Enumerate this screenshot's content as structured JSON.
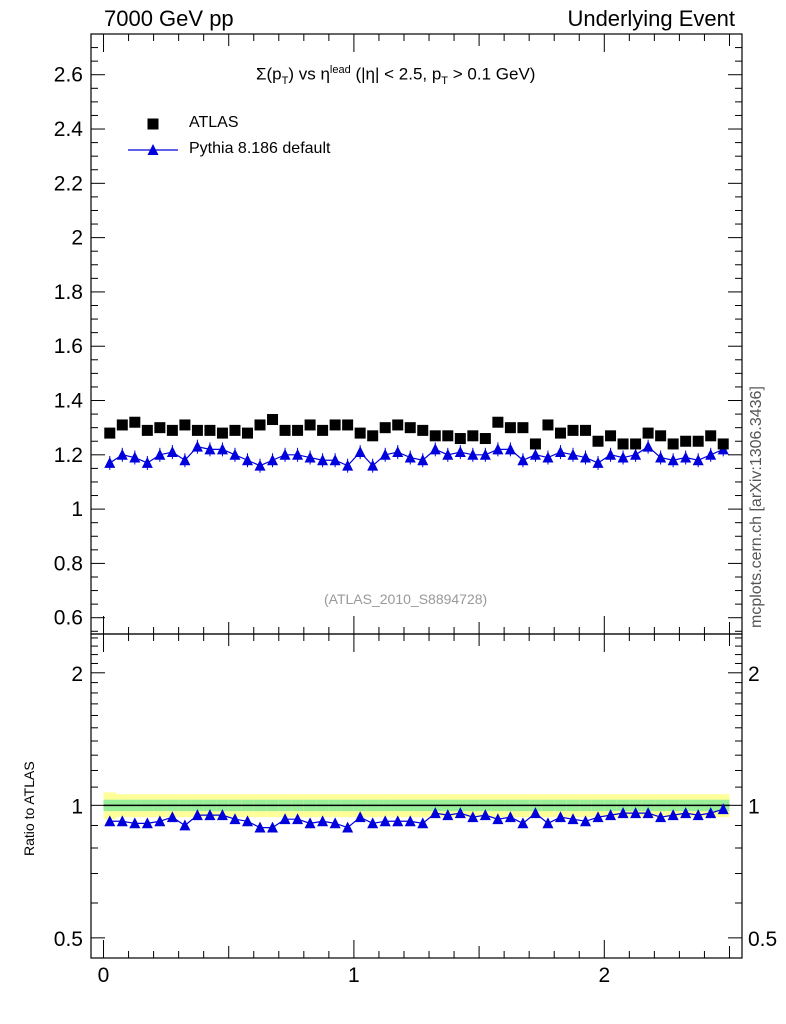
{
  "header": {
    "left": "7000 GeV pp",
    "right": "Underlying Event"
  },
  "side_label": "mcplots.cern.ch [arXiv:1306.3436]",
  "analysis_id": "(ATLAS_2010_S8894728)",
  "plot_title": {
    "sigma": "Σ(p",
    "sub1": "T",
    "vs": ") vs η",
    "sup": "lead",
    "rest": " (|η| < 2.5, p",
    "sub2": "T",
    "tail": " > 0.1 GeV)"
  },
  "legend": {
    "atlas": "ATLAS",
    "pythia": "Pythia 8.186 default"
  },
  "ratio_ylabel": "Ratio to ATLAS",
  "colors": {
    "atlas": "#000000",
    "pythia": "#0000dd",
    "band_green": "#99ee99",
    "band_yellow": "#ffff99"
  },
  "chart_data": [
    {
      "type": "scatter",
      "panel": "main",
      "xlim": [
        -0.05,
        2.55
      ],
      "ylim": [
        0.54,
        2.75
      ],
      "yticks": [
        0.6,
        0.8,
        1,
        1.2,
        1.4,
        1.6,
        1.8,
        2,
        2.2,
        2.4,
        2.6
      ],
      "ytick_labels": [
        "0.6",
        "0.8",
        "1",
        "1.2",
        "1.4",
        "1.6",
        "1.8",
        "2",
        "2.2",
        "2.4",
        "2.6"
      ],
      "x": [
        0.025,
        0.075,
        0.125,
        0.175,
        0.225,
        0.275,
        0.325,
        0.375,
        0.425,
        0.475,
        0.525,
        0.575,
        0.625,
        0.675,
        0.725,
        0.775,
        0.825,
        0.875,
        0.925,
        0.975,
        1.025,
        1.075,
        1.125,
        1.175,
        1.225,
        1.275,
        1.325,
        1.375,
        1.425,
        1.475,
        1.525,
        1.575,
        1.625,
        1.675,
        1.725,
        1.775,
        1.825,
        1.875,
        1.925,
        1.975,
        2.025,
        2.075,
        2.125,
        2.175,
        2.225,
        2.275,
        2.325,
        2.375,
        2.425,
        2.475
      ],
      "series": [
        {
          "name": "ATLAS",
          "values": [
            1.28,
            1.31,
            1.32,
            1.29,
            1.3,
            1.29,
            1.31,
            1.29,
            1.29,
            1.28,
            1.29,
            1.28,
            1.31,
            1.33,
            1.29,
            1.29,
            1.31,
            1.29,
            1.31,
            1.31,
            1.28,
            1.27,
            1.3,
            1.31,
            1.3,
            1.29,
            1.27,
            1.27,
            1.26,
            1.27,
            1.26,
            1.32,
            1.3,
            1.3,
            1.24,
            1.31,
            1.28,
            1.29,
            1.29,
            1.25,
            1.27,
            1.24,
            1.24,
            1.28,
            1.27,
            1.24,
            1.25,
            1.25,
            1.27,
            1.24
          ]
        },
        {
          "name": "Pythia 8.186 default",
          "values": [
            1.17,
            1.2,
            1.19,
            1.17,
            1.2,
            1.21,
            1.18,
            1.23,
            1.22,
            1.22,
            1.2,
            1.18,
            1.16,
            1.18,
            1.2,
            1.2,
            1.19,
            1.18,
            1.18,
            1.16,
            1.21,
            1.16,
            1.2,
            1.21,
            1.19,
            1.18,
            1.22,
            1.2,
            1.21,
            1.2,
            1.2,
            1.22,
            1.22,
            1.18,
            1.2,
            1.19,
            1.21,
            1.2,
            1.19,
            1.17,
            1.2,
            1.19,
            1.2,
            1.23,
            1.19,
            1.18,
            1.19,
            1.18,
            1.2,
            1.22
          ]
        }
      ]
    },
    {
      "type": "line",
      "panel": "ratio",
      "ylabel": "Ratio to ATLAS",
      "xlim": [
        -0.05,
        2.55
      ],
      "ylim": [
        0.45,
        2.45
      ],
      "scale": "log",
      "yticks": [
        0.5,
        1,
        2
      ],
      "ytick_labels": [
        "0.5",
        "1",
        "2"
      ],
      "xticks": [
        0,
        1,
        2
      ],
      "xtick_labels": [
        "0",
        "1",
        "2"
      ],
      "reference_line": 1,
      "band_green_halfwidth": [
        0.03,
        0.03,
        0.03,
        0.03,
        0.03,
        0.03,
        0.03,
        0.03,
        0.03,
        0.03,
        0.03,
        0.03,
        0.03,
        0.03,
        0.03,
        0.03,
        0.03,
        0.03,
        0.03,
        0.03,
        0.03,
        0.03,
        0.03,
        0.03,
        0.03,
        0.03,
        0.03,
        0.03,
        0.03,
        0.03,
        0.03,
        0.03,
        0.03,
        0.03,
        0.03,
        0.03,
        0.03,
        0.03,
        0.03,
        0.03,
        0.03,
        0.03,
        0.03,
        0.03,
        0.03,
        0.03,
        0.03,
        0.03,
        0.03,
        0.03
      ],
      "band_yellow_halfwidth": [
        0.07,
        0.06,
        0.06,
        0.06,
        0.06,
        0.06,
        0.06,
        0.06,
        0.06,
        0.06,
        0.06,
        0.06,
        0.06,
        0.06,
        0.06,
        0.06,
        0.06,
        0.06,
        0.06,
        0.06,
        0.06,
        0.06,
        0.06,
        0.06,
        0.06,
        0.06,
        0.06,
        0.06,
        0.06,
        0.06,
        0.06,
        0.06,
        0.06,
        0.06,
        0.06,
        0.06,
        0.06,
        0.06,
        0.06,
        0.06,
        0.06,
        0.06,
        0.06,
        0.06,
        0.06,
        0.06,
        0.06,
        0.06,
        0.06,
        0.06
      ],
      "series": [
        {
          "name": "Pythia 8.186 default",
          "values": [
            0.92,
            0.92,
            0.91,
            0.91,
            0.92,
            0.94,
            0.9,
            0.95,
            0.95,
            0.95,
            0.93,
            0.92,
            0.89,
            0.89,
            0.93,
            0.93,
            0.91,
            0.92,
            0.91,
            0.89,
            0.94,
            0.91,
            0.92,
            0.92,
            0.92,
            0.91,
            0.96,
            0.95,
            0.96,
            0.94,
            0.95,
            0.93,
            0.94,
            0.91,
            0.96,
            0.91,
            0.94,
            0.93,
            0.92,
            0.94,
            0.95,
            0.96,
            0.96,
            0.96,
            0.94,
            0.95,
            0.96,
            0.95,
            0.96,
            0.98
          ]
        }
      ]
    }
  ]
}
